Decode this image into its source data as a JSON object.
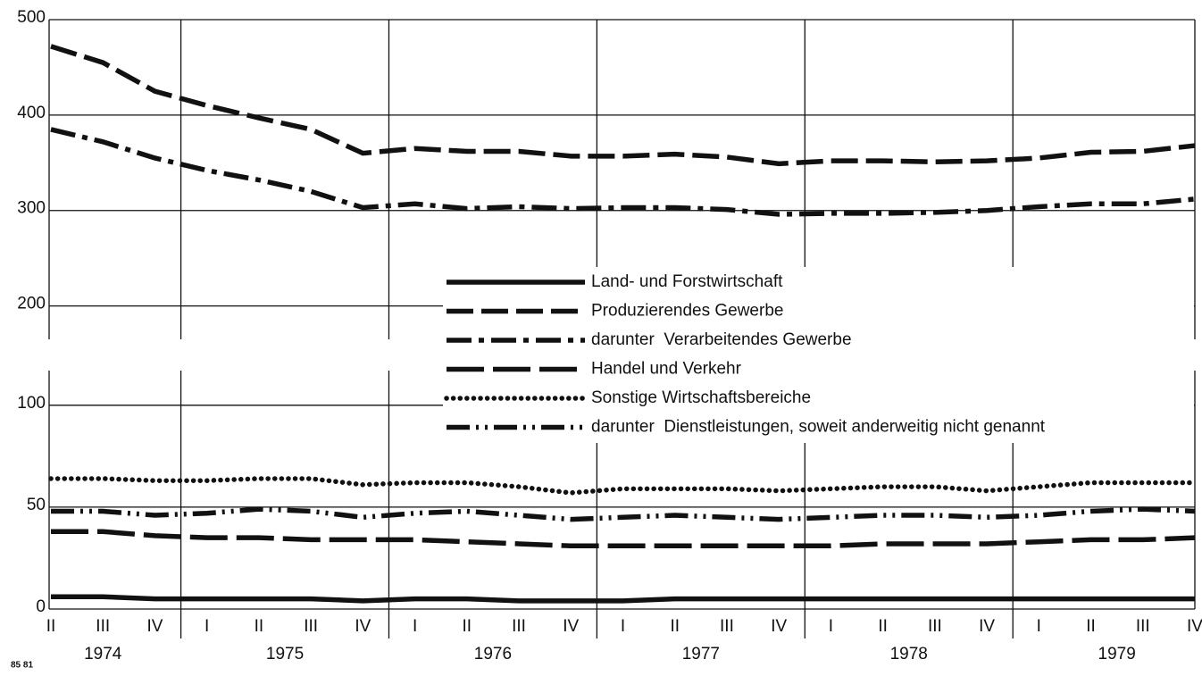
{
  "chart_data": {
    "type": "line",
    "categories": [
      "II",
      "III",
      "IV",
      "I",
      "II",
      "III",
      "IV",
      "I",
      "II",
      "III",
      "IV",
      "I",
      "II",
      "III",
      "IV",
      "I",
      "II",
      "III",
      "IV",
      "I",
      "II",
      "III",
      "IV"
    ],
    "years": [
      "1974",
      "1975",
      "1976",
      "1977",
      "1978",
      "1979"
    ],
    "footnote": "85 81",
    "panels": [
      {
        "ylim": [
          165,
          500
        ],
        "yticks": [
          200,
          300,
          400,
          500
        ]
      },
      {
        "ylim": [
          0,
          117
        ],
        "yticks": [
          0,
          50,
          100
        ]
      }
    ],
    "series": [
      {
        "name": "Land- und Forstwirtschaft",
        "panel": 1,
        "style": "solid",
        "color": "#111",
        "values": [
          6,
          6,
          5,
          5,
          5,
          5,
          4,
          5,
          5,
          4,
          4,
          4,
          5,
          5,
          5,
          5,
          5,
          5,
          5,
          5,
          5,
          5,
          5
        ]
      },
      {
        "name": "Produzierendes Gewerbe",
        "panel": 0,
        "style": "dashed",
        "color": "#111",
        "values": [
          472,
          455,
          425,
          410,
          397,
          385,
          360,
          365,
          362,
          362,
          357,
          357,
          359,
          356,
          349,
          352,
          352,
          351,
          352,
          355,
          361,
          362,
          368
        ]
      },
      {
        "name": "darunter  Verarbeitendes Gewerbe",
        "panel": 0,
        "style": "dashdot",
        "color": "#111",
        "values": [
          385,
          372,
          355,
          342,
          332,
          320,
          303,
          307,
          302,
          304,
          302,
          303,
          303,
          301,
          296,
          297,
          297,
          298,
          300,
          304,
          307,
          307,
          312
        ]
      },
      {
        "name": "Handel und Verkehr",
        "panel": 1,
        "style": "longdash",
        "color": "#111",
        "values": [
          38,
          38,
          36,
          35,
          35,
          34,
          34,
          34,
          33,
          32,
          31,
          31,
          31,
          31,
          31,
          31,
          32,
          32,
          32,
          33,
          34,
          34,
          35
        ]
      },
      {
        "name": "Sonstige Wirtschaftsbereiche",
        "panel": 1,
        "style": "dotted",
        "color": "#111",
        "values": [
          64,
          64,
          63,
          63,
          64,
          64,
          61,
          62,
          62,
          60,
          57,
          59,
          59,
          59,
          58,
          59,
          60,
          60,
          58,
          60,
          62,
          62,
          62
        ]
      },
      {
        "name": "darunter  Dienstleistungen, soweit anderweitig nicht genannt",
        "panel": 1,
        "style": "dashdotdot",
        "color": "#111",
        "values": [
          48,
          48,
          46,
          47,
          49,
          48,
          45,
          47,
          48,
          46,
          44,
          45,
          46,
          45,
          44,
          45,
          46,
          46,
          45,
          46,
          48,
          49,
          48
        ]
      }
    ]
  }
}
